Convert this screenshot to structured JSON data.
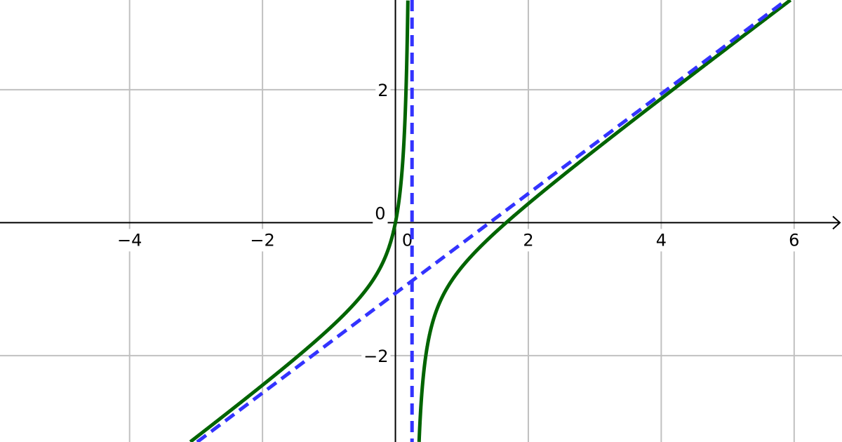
{
  "chart_data": {
    "type": "line",
    "title": "",
    "xlabel": "",
    "ylabel": "",
    "xlim": [
      -5.95,
      6.72
    ],
    "ylim": [
      -3.3,
      3.35
    ],
    "grid": true,
    "x_ticks": [
      "−4",
      "−2",
      "2",
      "4",
      "6"
    ],
    "x_tick_values": [
      -4,
      -2,
      2,
      4,
      6
    ],
    "y_ticks": [
      "−2",
      "2"
    ],
    "y_tick_values": [
      -2,
      2
    ],
    "origin_label_x": "0",
    "origin_label_y": "0",
    "series": [
      {
        "style": "solid",
        "color": "#006400",
        "numerator_coeffs": [
          3,
          -5,
          0
        ],
        "denominator_coeffs": [
          4,
          -1
        ],
        "points": [
          [
            -3,
            -3.23
          ],
          [
            -2,
            -2.44
          ],
          [
            -1,
            -1.6
          ],
          [
            -0.5,
            -1.08
          ],
          [
            0,
            0
          ],
          [
            0.1,
            0.78
          ],
          [
            0.2,
            4.4
          ],
          [
            0.35,
            -3.46
          ],
          [
            0.5,
            -1.75
          ],
          [
            1,
            -0.67
          ],
          [
            2,
            0.29
          ],
          [
            3,
            1.09
          ],
          [
            4,
            1.87
          ],
          [
            5,
            2.63
          ],
          [
            6,
            3.39
          ]
        ]
      },
      {
        "style": "dashed",
        "color": "#3333ff",
        "kind": "oblique-asymptote",
        "slope": 0.75,
        "intercept": -1.0625
      },
      {
        "style": "dashed",
        "color": "#3333ff",
        "kind": "vertical-asymptote",
        "x": 0.25
      }
    ],
    "colors": {
      "grid": "#c0c0c0",
      "axis": "#000000",
      "background": "#ffffff"
    }
  }
}
